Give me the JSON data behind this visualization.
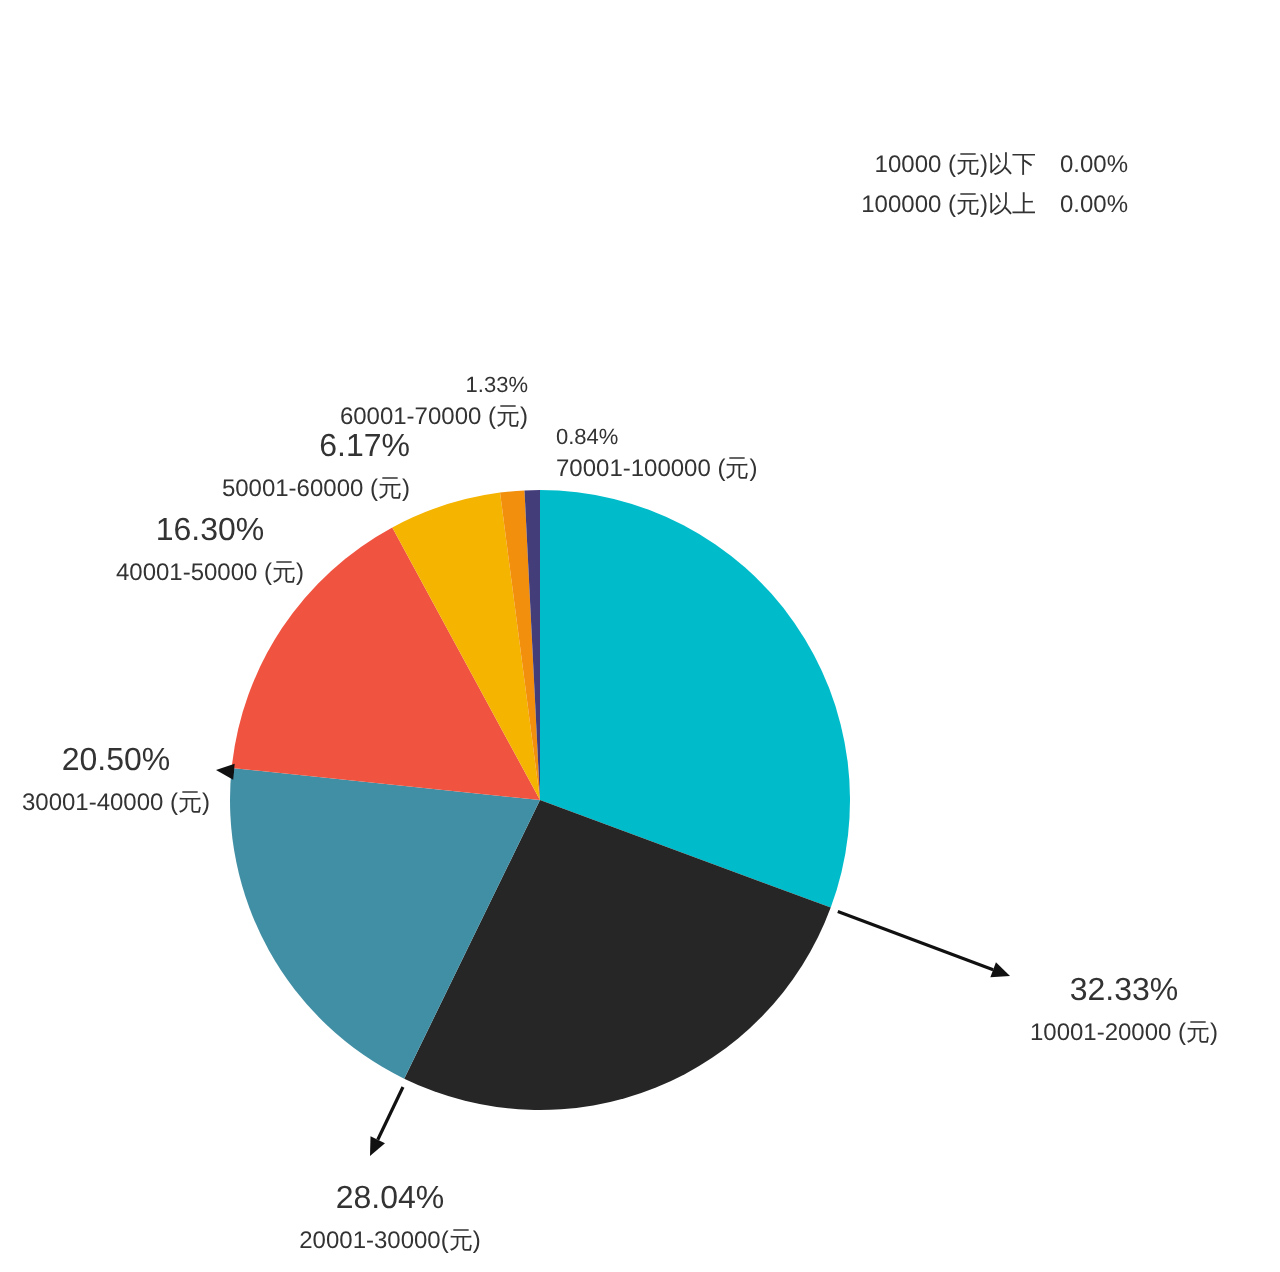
{
  "chart_data": {
    "type": "pie",
    "categories": [
      "10001-20000 (元)",
      "20001-30000(元)",
      "30001-40000 (元)",
      "40001-50000 (元)",
      "50001-60000 (元)",
      "60001-70000 (元)",
      "70001-100000 (元)",
      "10000 (元)以下",
      "100000 (元)以上"
    ],
    "values": [
      32.33,
      28.04,
      20.5,
      16.3,
      6.17,
      1.33,
      0.84,
      0,
      0
    ],
    "value_labels": [
      "32.33%",
      "28.04%",
      "20.50%",
      "16.30%",
      "6.17%",
      "1.33%",
      "0.84%",
      "0.00%",
      "0.00%"
    ],
    "colors": [
      "#00bccb",
      "#262626",
      "#418fa5",
      "#f0533f",
      "#f5b400",
      "#f2900e",
      "#433d7a",
      null,
      null
    ]
  }
}
